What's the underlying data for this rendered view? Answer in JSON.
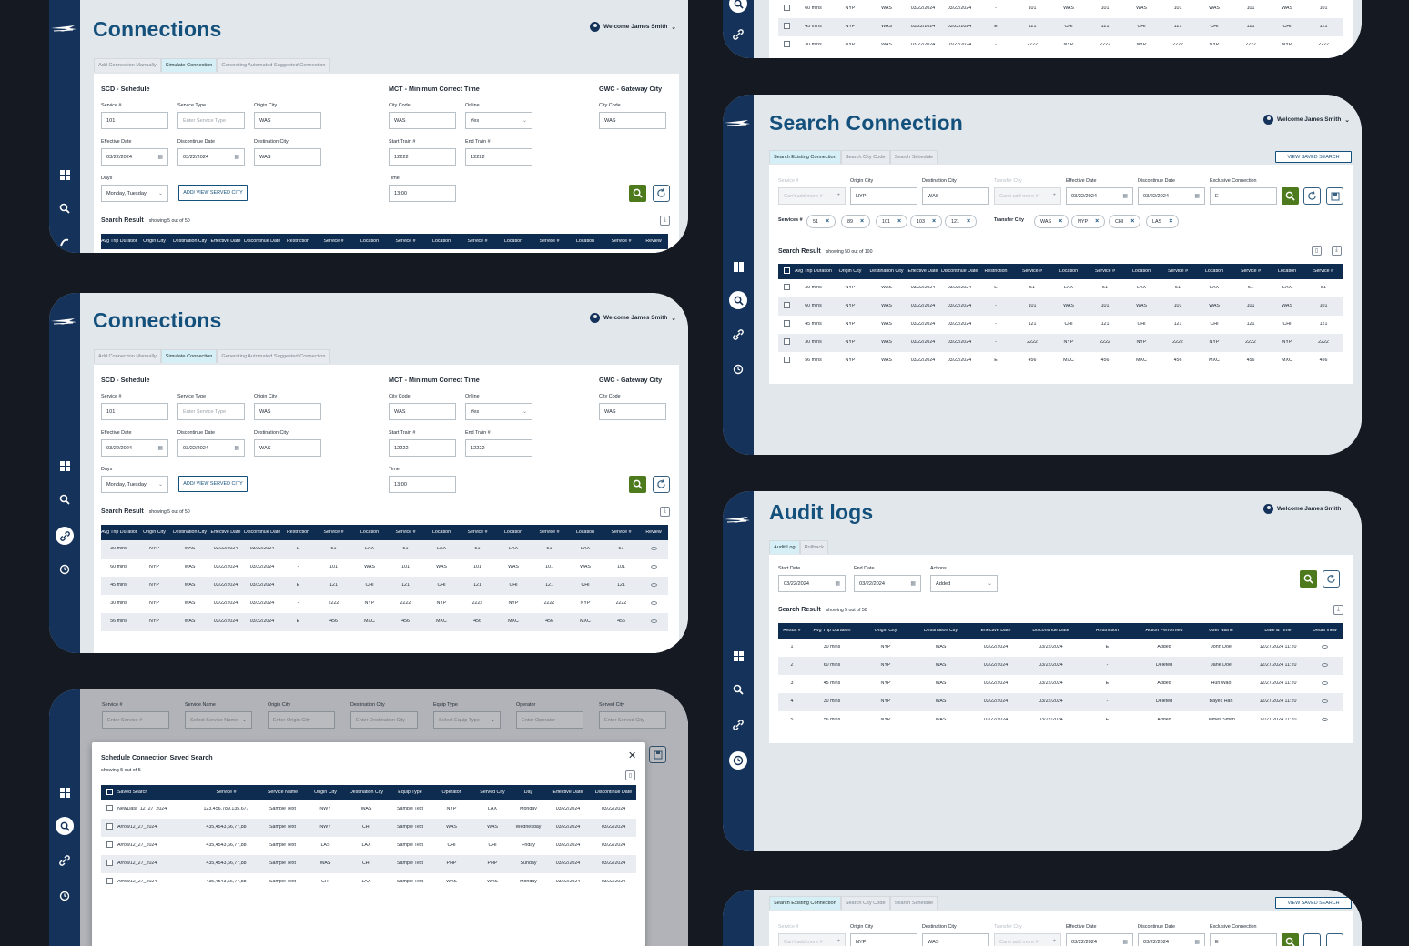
{
  "user": {
    "welcome": "Welcome James Smith"
  },
  "conn": {
    "title": "Connections",
    "tabs": [
      "Add Connection Manually",
      "Simulate Connection",
      "Generating Automated Suggested Connection"
    ],
    "scd_title": "SCD - Schedule",
    "mct_title": "MCT - Minimum Correct Time",
    "gwc_title": "GWC - Gateway City",
    "labels": {
      "service": "Service #",
      "service_type": "Service Type",
      "origin": "Origin City",
      "eff": "Effective Date",
      "disc": "Discontinue Date",
      "dest": "Destination City",
      "days": "Days",
      "city_code": "City Code",
      "online": "Online",
      "start_train": "Start Train #",
      "end_train": "End Train #",
      "time": "Time"
    },
    "values": {
      "service": "101",
      "service_type_ph": "Enter Service Type",
      "origin": "WAS",
      "eff": "03/22/2024",
      "disc": "03/22/2024",
      "dest": "WAS",
      "days": "Monday, Tuesday",
      "city_code": "WAS",
      "online": "Yes",
      "start_train": "12222",
      "end_train": "12222",
      "time": "13:00",
      "gwc_city": "WAS"
    },
    "add_city_btn": "ADD/ VIEW SERVED CITY",
    "result_title": "Search Result",
    "result_count": "showing 5 out of 50",
    "headers": [
      "Avg Trip Duration",
      "Origin City",
      "Destination City",
      "Effective Date",
      "Discontinue Date",
      "Restriction",
      "Service #",
      "Location",
      "Service #",
      "Location",
      "Service #",
      "Location",
      "Service #",
      "Location",
      "Service #",
      "Review"
    ],
    "rows": [
      [
        "30 mins",
        "NYP",
        "WAS",
        "03/22/2024",
        "03/22/2024",
        "E",
        "51",
        "LAX",
        "51",
        "LAX",
        "51",
        "LAX",
        "51",
        "LAX",
        "51"
      ],
      [
        "60 mins",
        "NYP",
        "WAS",
        "03/22/2024",
        "03/22/2024",
        "-",
        "101",
        "WAS",
        "101",
        "WAS",
        "101",
        "WAS",
        "101",
        "WAS",
        "101"
      ],
      [
        "45 mins",
        "NYP",
        "WAS",
        "03/22/2024",
        "03/22/2024",
        "E",
        "121",
        "CHI",
        "121",
        "CHI",
        "121",
        "CHI",
        "121",
        "CHI",
        "121"
      ],
      [
        "30 mins",
        "NYP",
        "WAS",
        "03/22/2024",
        "03/22/2024",
        "-",
        "2222",
        "NYP",
        "2222",
        "NYP",
        "2222",
        "NYP",
        "2222",
        "NYP",
        "2222"
      ],
      [
        "56 mins",
        "NYP",
        "WAS",
        "03/22/2024",
        "03/22/2024",
        "E",
        "456",
        "MXC",
        "456",
        "MXC",
        "456",
        "MXC",
        "456",
        "MXC",
        "456"
      ]
    ]
  },
  "modal_bg": {
    "labels": [
      "Service #",
      "Service Name",
      "Origin City",
      "Destination City",
      "Equip Type",
      "Operator",
      "Served City"
    ],
    "placeholders": [
      "Enter Service #",
      "Select Service Name",
      "Enter Origin City",
      "Enter Destination City",
      "Select Equip Type",
      "Enter Operator",
      "Enter Served City"
    ]
  },
  "modal": {
    "title": "Schedule Connection Saved Search",
    "count": "showing 5 out of 5",
    "headers": [
      "Saved Search",
      "Service #",
      "Service Name",
      "Origin City",
      "Destination City",
      "Equip Type",
      "Operator",
      "Served City",
      "Day",
      "Effective Date",
      "Discontinue Date"
    ],
    "rows": [
      [
        "NewData_12_27_2024",
        "123,456,789,135,677",
        "Sample Text",
        "NWY",
        "WAS",
        "Sample Text",
        "NYP",
        "LAX",
        "Monday",
        "03/22/2024",
        "03/22/2024"
      ],
      [
        "Arrow12_27_2024",
        "435,4543,66,77,88",
        "Sample Text",
        "NWY",
        "CHI",
        "Sample Text",
        "WAS",
        "WAS",
        "Wednesday",
        "03/22/2024",
        "03/22/2024"
      ],
      [
        "Arrow12_27_2024",
        "435,4543,66,77,88",
        "Sample Text",
        "LAS",
        "LAX",
        "Sample Text",
        "CHI",
        "CHI",
        "Friday",
        "03/22/2024",
        "03/22/2024"
      ],
      [
        "Arrow12_27_2024",
        "435,4543,66,77,88",
        "Sample Text",
        "WAS",
        "CHI",
        "Sample Text",
        "PHP",
        "PHP",
        "Sunday",
        "03/22/2024",
        "03/22/2024"
      ],
      [
        "Arrow12_27_2024",
        "435,4543,66,77,88",
        "Sample Text",
        "CHI",
        "LAX",
        "Sample Text",
        "WAS",
        "WAS",
        "Monday",
        "03/22/2024",
        "03/22/2024"
      ]
    ]
  },
  "search": {
    "title": "Search Connection",
    "tabs": [
      "Search Existing Connection",
      "Search City Code",
      "Search Schedule"
    ],
    "view_saved": "VIEW SAVED SEARCH",
    "labels": [
      "Service #",
      "Origin City",
      "Destination City",
      "Transfer City",
      "Effective Date",
      "Discontinue Date",
      "Exclusive Connection"
    ],
    "values": [
      "Can't add more #",
      "NYP",
      "WAS",
      "Can't add more #",
      "03/22/2024",
      "03/22/2024",
      "E"
    ],
    "services_label": "Services #",
    "services": [
      "51",
      "89",
      "101",
      "103",
      "121"
    ],
    "transfer_label": "Transfer City",
    "transfer": [
      "WAS",
      "NYP",
      "CHI",
      "LAS"
    ],
    "result_title": "Search Result",
    "result_count": "showing 50 out of 100",
    "headers": [
      "Avg Trip Duration",
      "Origin City",
      "Destination City",
      "Effective Date",
      "Discontinue Date",
      "Restriction",
      "Service #",
      "Location",
      "Service #",
      "Location",
      "Service #",
      "Location",
      "Service #",
      "Location",
      "Service #"
    ],
    "rows": [
      [
        "30 mins",
        "NYP",
        "WAS",
        "03/22/2024",
        "03/22/2024",
        "E",
        "51",
        "LAX",
        "51",
        "LAX",
        "51",
        "LAX",
        "51",
        "LAX",
        "51"
      ],
      [
        "60 mins",
        "NYP",
        "WAS",
        "03/22/2024",
        "03/22/2024",
        "-",
        "101",
        "WAS",
        "101",
        "WAS",
        "101",
        "WAS",
        "101",
        "WAS",
        "101"
      ],
      [
        "45 mins",
        "NYP",
        "WAS",
        "03/22/2024",
        "03/22/2024",
        "-",
        "121",
        "CHI",
        "121",
        "CHI",
        "121",
        "CHI",
        "121",
        "CHI",
        "121"
      ],
      [
        "30 mins",
        "NYP",
        "WAS",
        "03/22/2024",
        "03/22/2024",
        "-",
        "2222",
        "NYP",
        "2222",
        "NYP",
        "2222",
        "NYP",
        "2222",
        "NYP",
        "2222"
      ],
      [
        "56 mins",
        "NYP",
        "WAS",
        "03/22/2024",
        "03/22/2024",
        "E",
        "456",
        "MXC",
        "456",
        "MXC",
        "456",
        "MXC",
        "456",
        "MXC",
        "456"
      ]
    ],
    "top_rows": [
      [
        "60 mins",
        "NYP",
        "WAS",
        "03/22/2024",
        "03/22/2024",
        "-",
        "101",
        "WAS",
        "101",
        "WAS",
        "101",
        "WAS",
        "101",
        "WAS",
        "101"
      ],
      [
        "45 mins",
        "NYP",
        "WAS",
        "03/22/2024",
        "03/22/2024",
        "E",
        "121",
        "CHI",
        "121",
        "CHI",
        "121",
        "CHI",
        "121",
        "CHI",
        "121"
      ],
      [
        "30 mins",
        "NYP",
        "WAS",
        "03/22/2024",
        "03/22/2024",
        "-",
        "2222",
        "NYP",
        "2222",
        "NYP",
        "2222",
        "NYP",
        "2222",
        "NYP",
        "2222"
      ]
    ]
  },
  "audit": {
    "title": "Audit logs",
    "tabs": [
      "Audit Log",
      "Rollback"
    ],
    "labels": [
      "Start Date",
      "End Date",
      "Actions"
    ],
    "values": [
      "03/22/2024",
      "03/22/2024",
      "Added"
    ],
    "result_title": "Search Result",
    "result_count": "showing 5 out of 50",
    "headers": [
      "Result #",
      "Avg Trip Duration",
      "Origin City",
      "Destination City",
      "Effective Date",
      "Discontinue Date",
      "Restriction",
      "Action Performed",
      "User Name",
      "Date & Time",
      "Detail View"
    ],
    "rows": [
      [
        "1",
        "30 mins",
        "NYP",
        "WAS",
        "03/22/2024",
        "03/22/2024",
        "E",
        "Added",
        "John Doe",
        "12/27/2024  11:20"
      ],
      [
        "2",
        "60 mins",
        "NYP",
        "WAS",
        "03/22/2024",
        "03/22/2024",
        "-",
        "Deleted",
        "Jane Doe",
        "12/27/2024  11:20"
      ],
      [
        "3",
        "45 mins",
        "NYP",
        "WAS",
        "03/22/2024",
        "03/22/2024",
        "E",
        "Added",
        "Hun Wao",
        "12/27/2024  11:20"
      ],
      [
        "4",
        "30 mins",
        "NYP",
        "WAS",
        "03/22/2024",
        "03/22/2024",
        "-",
        "Deleted",
        "Bayek Han",
        "12/27/2024  11:20"
      ],
      [
        "5",
        "56 mins",
        "NYP",
        "WAS",
        "03/22/2024",
        "03/22/2024",
        "E",
        "Added",
        "James Smith",
        "12/27/2024  11:20"
      ]
    ]
  },
  "colors": {
    "navy": "#14325a",
    "title": "#14507c",
    "green": "#4c7a1d",
    "header": "#0e2c50"
  }
}
